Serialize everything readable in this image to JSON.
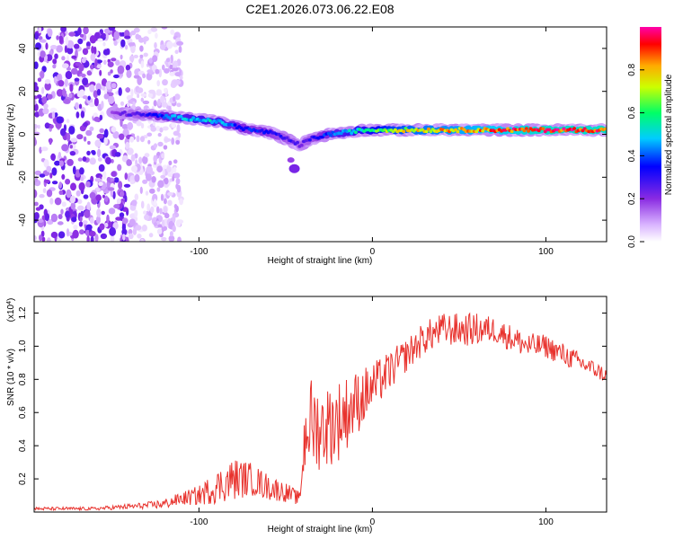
{
  "figure_title": "C2E1.2026.073.06.22.E08",
  "colors": {
    "snr_line": "#e8332e",
    "axis": "#000000",
    "background": "#ffffff"
  },
  "chart_data": [
    {
      "id": "spectrogram",
      "type": "heatmap",
      "title": "C2E1.2026.073.06.22.E08",
      "xlabel": "Height of straight line (km)",
      "ylabel": "Frequency (Hz)",
      "xlim": [
        -195,
        135
      ],
      "ylim": [
        -50,
        50
      ],
      "xticks": [
        -100,
        0,
        100
      ],
      "yticks": [
        -40,
        -20,
        0,
        20,
        40
      ],
      "colorbar": {
        "label": "Normalized spectral amplitude",
        "range": [
          0,
          1
        ],
        "ticks": [
          "0.0",
          "0.2",
          "0.4",
          "0.6",
          "0.8"
        ],
        "colormap": "rainbow (white-purple-blue-cyan-green-yellow-red-magenta)"
      },
      "noise_region_x": [
        -195,
        -120
      ],
      "ridge": {
        "description": "Dominant frequency track vs height",
        "x": [
          -150,
          -130,
          -115,
          -100,
          -90,
          -80,
          -70,
          -60,
          -50,
          -42,
          -35,
          -25,
          -15,
          -5,
          0,
          10,
          20,
          40,
          60,
          80,
          100,
          120,
          135
        ],
        "freq_hz": [
          10,
          9,
          8,
          7,
          6,
          4,
          2,
          1,
          -2,
          -5,
          -2,
          0,
          1,
          2,
          2,
          2,
          2,
          2,
          2,
          2,
          2,
          2,
          2
        ],
        "peak_amplitude": [
          0.2,
          0.3,
          0.45,
          0.5,
          0.5,
          0.4,
          0.35,
          0.35,
          0.3,
          0.25,
          0.3,
          0.4,
          0.5,
          0.55,
          0.6,
          0.7,
          0.75,
          0.8,
          0.85,
          0.9,
          0.95,
          0.95,
          0.95
        ]
      },
      "secondary_blob": {
        "x": -45,
        "freq_hz": -16
      }
    },
    {
      "id": "snr",
      "type": "line",
      "title": "",
      "xlabel": "Height of straight line (km)",
      "ylabel": "SNR (10 * v/v)",
      "scale_note": "(x10^4)",
      "xlim": [
        -195,
        135
      ],
      "ylim": [
        0,
        1.3
      ],
      "xticks": [
        -100,
        0,
        100
      ],
      "yticks": [
        "0.2",
        "0.4",
        "0.6",
        "0.8",
        "1.0",
        "1.2"
      ],
      "series": [
        {
          "name": "SNR",
          "envelope_x": [
            -195,
            -160,
            -130,
            -120,
            -110,
            -100,
            -90,
            -80,
            -70,
            -60,
            -50,
            -42,
            -38,
            -30,
            -20,
            -10,
            0,
            10,
            20,
            30,
            40,
            50,
            60,
            70,
            80,
            90,
            100,
            110,
            120,
            130,
            135
          ],
          "envelope_y": [
            0.02,
            0.02,
            0.04,
            0.05,
            0.08,
            0.1,
            0.15,
            0.2,
            0.2,
            0.15,
            0.12,
            0.08,
            0.55,
            0.5,
            0.55,
            0.65,
            0.75,
            0.85,
            0.95,
            1.05,
            1.1,
            1.1,
            1.1,
            1.1,
            1.05,
            1.0,
            1.0,
            0.95,
            0.9,
            0.85,
            0.82
          ],
          "noise_amplitude": [
            0.01,
            0.01,
            0.02,
            0.03,
            0.04,
            0.06,
            0.1,
            0.13,
            0.1,
            0.08,
            0.06,
            0.04,
            0.3,
            0.25,
            0.25,
            0.2,
            0.15,
            0.12,
            0.1,
            0.1,
            0.1,
            0.1,
            0.1,
            0.08,
            0.08,
            0.08,
            0.07,
            0.07,
            0.06,
            0.05,
            0.05
          ]
        }
      ]
    }
  ]
}
